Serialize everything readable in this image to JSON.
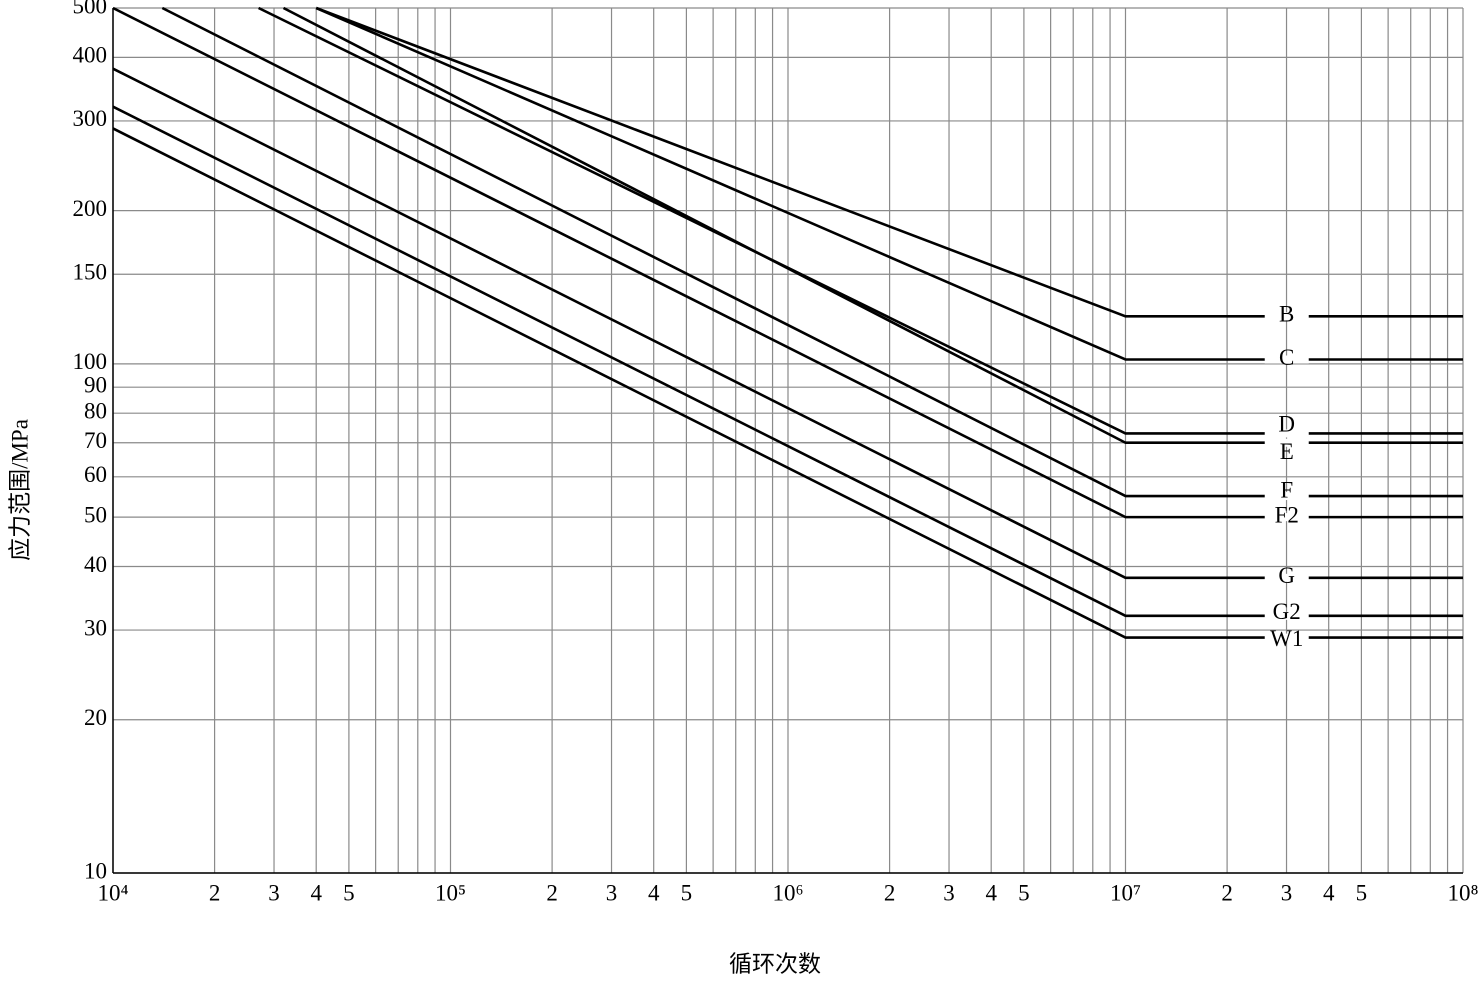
{
  "chart_data": {
    "type": "line",
    "xlabel": "循环次数",
    "ylabel": "应力范围/MPa",
    "log_x": true,
    "log_y": true,
    "grid": true,
    "color": "#000000",
    "xlim": [
      10000,
      100000000
    ],
    "ylim": [
      10,
      500
    ],
    "xticks": [
      {
        "value": 10000,
        "label": "10⁴"
      },
      {
        "value": 20000,
        "label": "2"
      },
      {
        "value": 30000,
        "label": "3"
      },
      {
        "value": 40000,
        "label": "4"
      },
      {
        "value": 50000,
        "label": "5"
      },
      {
        "value": 100000,
        "label": "10⁵"
      },
      {
        "value": 200000,
        "label": "2"
      },
      {
        "value": 300000,
        "label": "3"
      },
      {
        "value": 400000,
        "label": "4"
      },
      {
        "value": 500000,
        "label": "5"
      },
      {
        "value": 1000000,
        "label": "10⁶"
      },
      {
        "value": 2000000,
        "label": "2"
      },
      {
        "value": 3000000,
        "label": "3"
      },
      {
        "value": 4000000,
        "label": "4"
      },
      {
        "value": 5000000,
        "label": "5"
      },
      {
        "value": 10000000,
        "label": "10⁷"
      },
      {
        "value": 20000000,
        "label": "2"
      },
      {
        "value": 30000000,
        "label": "3"
      },
      {
        "value": 40000000,
        "label": "4"
      },
      {
        "value": 50000000,
        "label": "5"
      },
      {
        "value": 100000000,
        "label": "10⁸"
      }
    ],
    "xgrid_minor": [
      60000,
      70000,
      80000,
      90000,
      600000,
      700000,
      800000,
      900000,
      6000000,
      7000000,
      8000000,
      9000000,
      60000000,
      70000000,
      80000000,
      90000000
    ],
    "yticks": [
      10,
      20,
      30,
      40,
      50,
      60,
      70,
      80,
      90,
      100,
      150,
      200,
      300,
      400,
      500
    ],
    "series": [
      {
        "name": "B",
        "x": [
          40000,
          10000000,
          100000000
        ],
        "values": [
          500,
          124,
          124
        ]
      },
      {
        "name": "C",
        "x": [
          40000,
          10000000,
          100000000
        ],
        "values": [
          500,
          102,
          102
        ]
      },
      {
        "name": "D",
        "x": [
          27000,
          10000000,
          100000000
        ],
        "values": [
          500,
          73,
          73
        ]
      },
      {
        "name": "E",
        "x": [
          32000,
          10000000,
          100000000
        ],
        "values": [
          500,
          70,
          70
        ]
      },
      {
        "name": "F",
        "x": [
          14000,
          10000000,
          100000000
        ],
        "values": [
          500,
          55,
          55
        ]
      },
      {
        "name": "F2",
        "x": [
          10000,
          10000000,
          100000000
        ],
        "values": [
          500,
          50,
          50
        ]
      },
      {
        "name": "G",
        "x": [
          10000,
          10000000,
          100000000
        ],
        "values": [
          380,
          38,
          38
        ]
      },
      {
        "name": "G2",
        "x": [
          10000,
          10000000,
          100000000
        ],
        "values": [
          320,
          32,
          32
        ]
      },
      {
        "name": "W1",
        "x": [
          10000,
          10000000,
          100000000
        ],
        "values": [
          290,
          29,
          29
        ]
      }
    ]
  }
}
